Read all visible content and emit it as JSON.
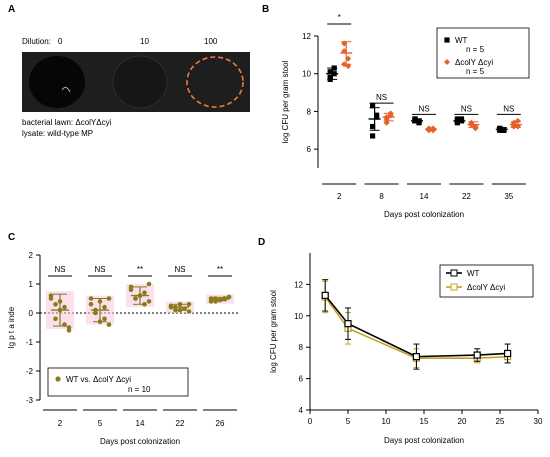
{
  "panel_a": {
    "letter": "A",
    "dilution_label": "Dilution:",
    "dilutions": [
      "0",
      "10",
      "100"
    ],
    "lawn_label": "bacterial lawn: ΔcolYΔcyi",
    "lysate_label": "lysate: wild-type MP",
    "colors": {
      "plate_bg": "#2a2a2a",
      "highlight": "#f07a3a"
    }
  },
  "panel_b_letter": "B",
  "panel_c_letter": "C",
  "panel_d_letter": "D",
  "chart_data": [
    {
      "panel": "B",
      "type": "scatter",
      "ylabel": "log CFU per gram stool",
      "xlabel": "Days post colonization",
      "categories": [
        "2",
        "8",
        "14",
        "22",
        "35"
      ],
      "ylim": [
        5,
        12
      ],
      "yticks": [
        "6",
        "8",
        "10",
        "12"
      ],
      "series": [
        {
          "name": "WT",
          "legend_n": "n = 5",
          "color": "#000000",
          "marker": "square",
          "points": [
            [
              10.1,
              10.3,
              9.7,
              10.0,
              9.8
            ],
            [
              8.3,
              7.7,
              7.2,
              7.8,
              6.7
            ],
            [
              7.6,
              7.5,
              7.5,
              7.4,
              7.6
            ],
            [
              7.5,
              7.6,
              7.4,
              7.5,
              7.6
            ],
            [
              7.1,
              7.0,
              7.1,
              7.0,
              7.0
            ]
          ],
          "means": [
            10.0,
            7.6,
            7.5,
            7.5,
            7.05
          ],
          "sd": [
            0.3,
            0.6,
            0.1,
            0.1,
            0.1
          ]
        },
        {
          "name": "ΔcolY Δcyi",
          "legend_n": "n = 5",
          "color": "#e8602c",
          "marker": "diamond",
          "points": [
            [
              11.6,
              10.4,
              11.2,
              10.8,
              10.5
            ],
            [
              7.7,
              7.9,
              7.4,
              7.8,
              7.6
            ],
            [
              7.1,
              7.0,
              7.0,
              7.1,
              7.0
            ],
            [
              7.4,
              7.2,
              7.3,
              7.1,
              7.3
            ],
            [
              7.4,
              7.2,
              7.3,
              7.5,
              7.2
            ]
          ],
          "means": [
            11.1,
            7.7,
            7.05,
            7.3,
            7.3
          ],
          "sd": [
            0.6,
            0.2,
            0.05,
            0.15,
            0.15
          ]
        }
      ],
      "annotations": [
        "*",
        "NS",
        "NS",
        "NS",
        "NS"
      ]
    },
    {
      "panel": "C",
      "type": "scatter",
      "ylabel": "lg  p t  a  inde",
      "xlabel": "Days post colonization",
      "categories": [
        "2",
        "5",
        "14",
        "22",
        "26"
      ],
      "ylim": [
        -3,
        2
      ],
      "yticks": [
        "-3",
        "-2",
        "-1",
        "0",
        "1",
        "2"
      ],
      "series": [
        {
          "name": "WT vs. ΔcolY Δcyi",
          "legend_n": "n = 10",
          "color": "#8a7a1e",
          "points": [
            [
              0.6,
              0.3,
              0.1,
              -0.4,
              -0.6,
              0.5,
              -0.2,
              0.4,
              0.2,
              -0.5
            ],
            [
              0.5,
              0.1,
              -0.3,
              0.2,
              -0.4,
              0.3,
              0.0,
              0.4,
              -0.2,
              0.5
            ],
            [
              0.9,
              0.5,
              0.6,
              0.7,
              0.4,
              0.8,
              0.5,
              0.6,
              0.3,
              1.0
            ],
            [
              0.2,
              0.1,
              0.3,
              0.15,
              0.05,
              0.25,
              0.2,
              0.1,
              0.15,
              0.3
            ],
            [
              0.5,
              0.4,
              0.45,
              0.5,
              0.55,
              0.4,
              0.5,
              0.45,
              0.5,
              0.55
            ]
          ],
          "means": [
            0.1,
            0.1,
            0.6,
            0.2,
            0.48
          ],
          "sd": [
            0.55,
            0.4,
            0.3,
            0.1,
            0.06
          ]
        }
      ],
      "annotations": [
        "NS",
        "NS",
        "**",
        "NS",
        "**"
      ],
      "reference_line": 0
    },
    {
      "panel": "D",
      "type": "line",
      "ylabel": "log CFU per gram stool",
      "xlabel": "Days post colonization",
      "xlim": [
        0,
        30
      ],
      "ylim": [
        4,
        14
      ],
      "xticks": [
        "0",
        "5",
        "10",
        "15",
        "20",
        "25",
        "30"
      ],
      "yticks": [
        "4",
        "6",
        "8",
        "10",
        "12"
      ],
      "x": [
        2,
        5,
        14,
        22,
        26
      ],
      "series": [
        {
          "name": "WT",
          "color": "#000000",
          "values": [
            11.3,
            9.5,
            7.4,
            7.5,
            7.6
          ],
          "err": [
            1.0,
            1.0,
            0.8,
            0.4,
            0.6
          ]
        },
        {
          "name": "ΔcolY Δcyi",
          "color": "#c8a020",
          "values": [
            11.2,
            9.2,
            7.3,
            7.3,
            7.4
          ],
          "err": [
            1.0,
            1.0,
            0.6,
            0.3,
            0.4
          ]
        }
      ]
    }
  ]
}
